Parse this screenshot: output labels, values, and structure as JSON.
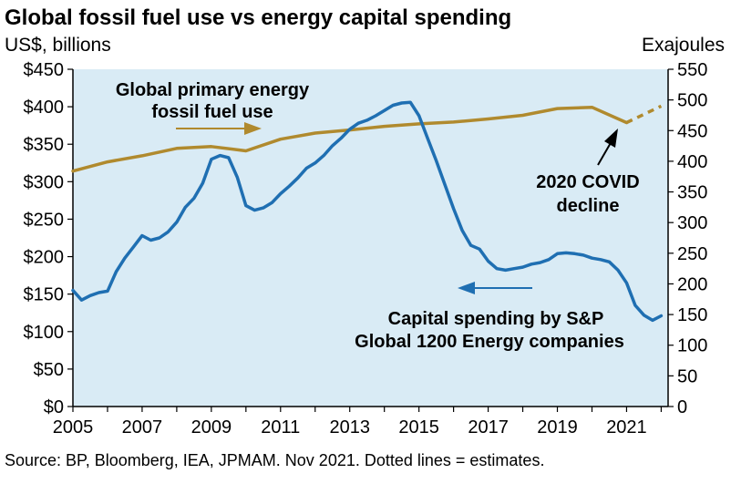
{
  "chart_data": {
    "type": "line",
    "title": "Global fossil fuel use vs energy capital spending",
    "left_axis_label": "US$, billions",
    "right_axis_label": "Exajoules",
    "xlim": [
      2005,
      2022.2
    ],
    "ylim_left": [
      0,
      450
    ],
    "ylim_right": [
      0,
      550
    ],
    "x_ticks": [
      2005,
      2007,
      2009,
      2011,
      2013,
      2015,
      2017,
      2019,
      2021
    ],
    "x_tick_labels": [
      "2005",
      "2007",
      "2009",
      "2011",
      "2013",
      "2015",
      "2017",
      "2019",
      "2021"
    ],
    "left_ticks": [
      0,
      50,
      100,
      150,
      200,
      250,
      300,
      350,
      400,
      450
    ],
    "left_tick_labels": [
      "$0",
      "$50",
      "$100",
      "$150",
      "$200",
      "$250",
      "$300",
      "$350",
      "$400",
      "$450"
    ],
    "right_ticks": [
      0,
      50,
      100,
      150,
      200,
      250,
      300,
      350,
      400,
      450,
      500,
      550
    ],
    "right_tick_labels": [
      "0",
      "50",
      "100",
      "150",
      "200",
      "250",
      "300",
      "350",
      "400",
      "450",
      "500",
      "550"
    ],
    "grid": false,
    "plot_background": "#d9ebf5",
    "series": [
      {
        "name": "Global primary energy fossil fuel use",
        "axis": "right",
        "color": "#b08a2e",
        "x": [
          2005,
          2006,
          2007,
          2008,
          2009,
          2010,
          2011,
          2012,
          2013,
          2014,
          2015,
          2016,
          2017,
          2018,
          2019,
          2020,
          2021
        ],
        "y": [
          384,
          399,
          409,
          421,
          424,
          417,
          436,
          446,
          451,
          457,
          461,
          464,
          469,
          475,
          486,
          488,
          463
        ],
        "estimate": {
          "x": [
            2021,
            2022
          ],
          "y": [
            463,
            490
          ]
        }
      },
      {
        "name": "Capital spending by S&P Global 1200 Energy companies",
        "axis": "left",
        "color": "#1f6fb2",
        "x": [
          2005,
          2005.25,
          2005.5,
          2005.75,
          2006,
          2006.25,
          2006.5,
          2006.75,
          2007,
          2007.25,
          2007.5,
          2007.75,
          2008,
          2008.25,
          2008.5,
          2008.75,
          2009,
          2009.25,
          2009.5,
          2009.75,
          2010,
          2010.25,
          2010.5,
          2010.75,
          2011,
          2011.25,
          2011.5,
          2011.75,
          2012,
          2012.25,
          2012.5,
          2012.75,
          2013,
          2013.25,
          2013.5,
          2013.75,
          2014,
          2014.25,
          2014.5,
          2014.75,
          2015,
          2015.25,
          2015.5,
          2015.75,
          2016,
          2016.25,
          2016.5,
          2016.75,
          2017,
          2017.25,
          2017.5,
          2017.75,
          2018,
          2018.25,
          2018.5,
          2018.75,
          2019,
          2019.25,
          2019.5,
          2019.75,
          2020,
          2020.25,
          2020.5,
          2020.75,
          2021,
          2021.25,
          2021.5,
          2021.75,
          2022
        ],
        "y": [
          155,
          142,
          148,
          152,
          154,
          180,
          198,
          213,
          228,
          222,
          225,
          233,
          246,
          266,
          278,
          298,
          330,
          335,
          332,
          306,
          268,
          262,
          265,
          272,
          284,
          294,
          305,
          318,
          325,
          335,
          348,
          358,
          370,
          378,
          382,
          388,
          395,
          402,
          405,
          406,
          388,
          358,
          328,
          296,
          264,
          235,
          215,
          210,
          194,
          184,
          182,
          184,
          186,
          190,
          192,
          196,
          204,
          205,
          204,
          202,
          198,
          196,
          193,
          182,
          165,
          135,
          122,
          115,
          121
        ]
      }
    ],
    "annotations": {
      "fossil_label_line1": "Global primary energy",
      "fossil_label_line2": "fossil fuel use",
      "capex_label_line1": "Capital spending by S&P",
      "capex_label_line2": "Global 1200 Energy companies",
      "covid_label_line1": "2020 COVID",
      "covid_label_line2": "decline"
    },
    "source": "Source: BP, Bloomberg, IEA, JPMAM. Nov 2021. Dotted lines = estimates."
  }
}
